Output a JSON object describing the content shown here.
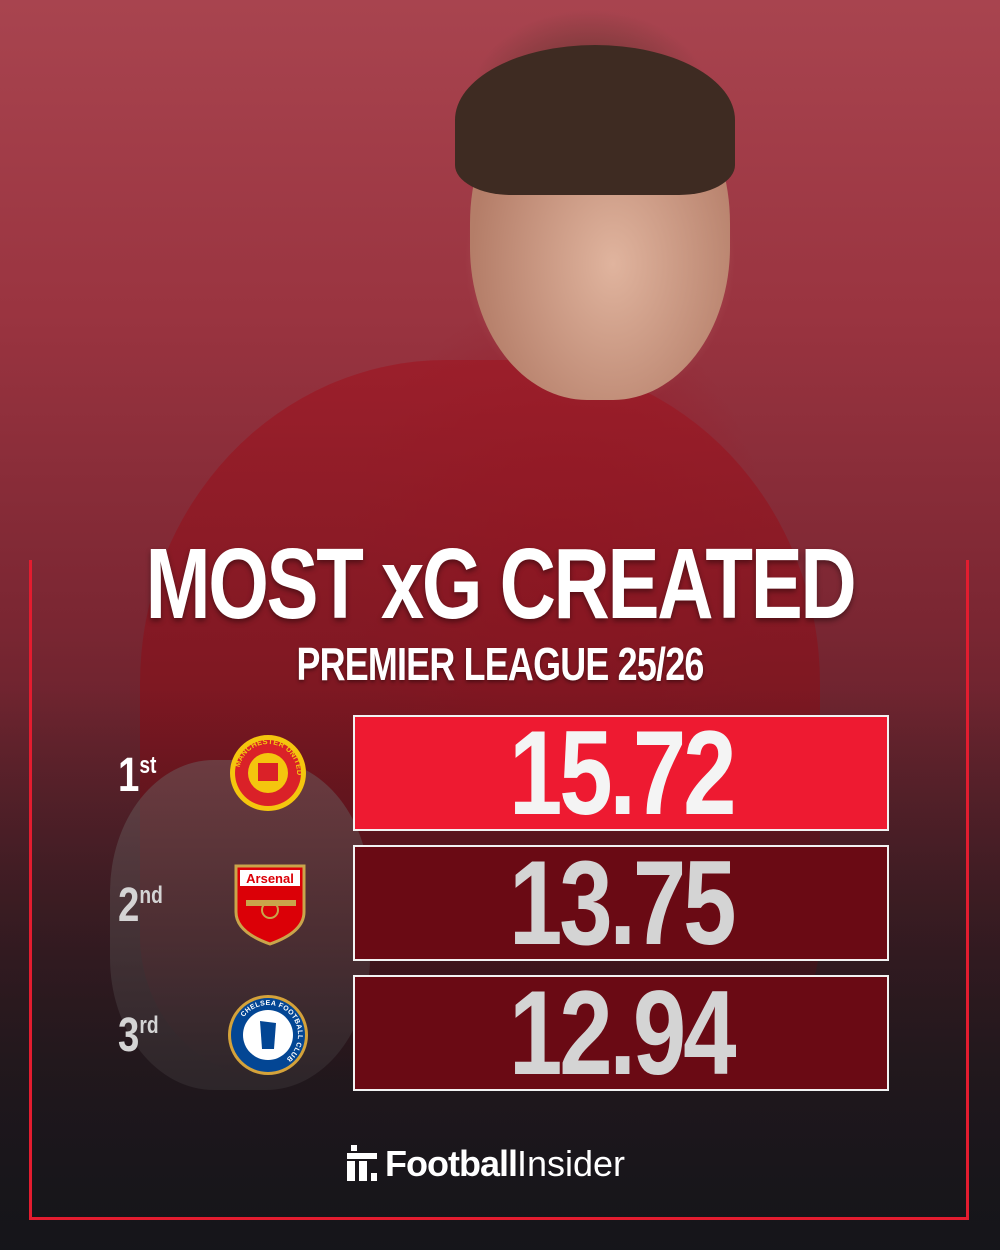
{
  "title": "MOST xG CREATED",
  "subtitle": "PREMIER LEAGUE 25/26",
  "rankings": [
    {
      "rank": "1",
      "suffix": "st",
      "club": "Manchester United",
      "crest_text": "MANCHESTER UNITED",
      "value": "15.72",
      "bar_color": "#ee1a31",
      "text_color": "#f4f4f4"
    },
    {
      "rank": "2",
      "suffix": "nd",
      "club": "Arsenal",
      "crest_text": "Arsenal",
      "value": "13.75",
      "bar_color": "#6a0a14",
      "text_color": "#d4d4d4"
    },
    {
      "rank": "3",
      "suffix": "rd",
      "club": "Chelsea",
      "crest_text": "CHELSEA FOOTBALL CLUB",
      "value": "12.94",
      "bar_color": "#6a0a14",
      "text_color": "#d4d4d4"
    }
  ],
  "brand": {
    "bold": "Football",
    "regular": "Insider"
  },
  "accent": "#e31c2f"
}
